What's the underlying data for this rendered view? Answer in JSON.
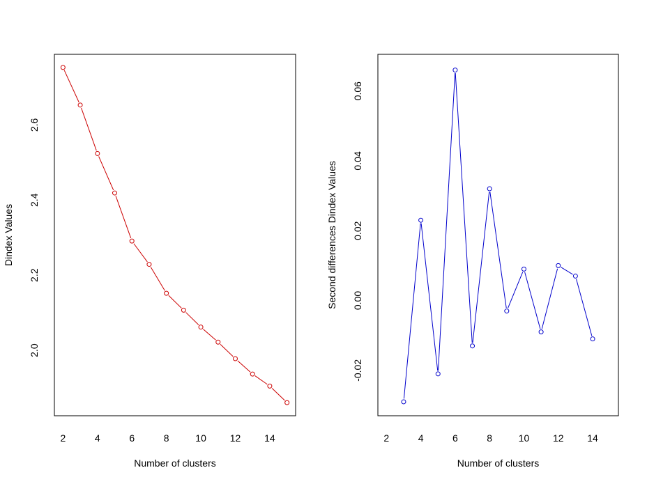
{
  "chart_data": [
    {
      "type": "line",
      "title": "",
      "xlabel": "Number of clusters",
      "ylabel": "Dindex Values",
      "color": "#cc0000",
      "x": [
        2,
        3,
        4,
        5,
        6,
        7,
        8,
        9,
        10,
        11,
        12,
        13,
        14,
        15
      ],
      "values": [
        2.753,
        2.653,
        2.524,
        2.419,
        2.291,
        2.229,
        2.152,
        2.107,
        2.062,
        2.022,
        1.978,
        1.937,
        1.905,
        1.861
      ],
      "xlim": [
        1.5,
        15.5
      ],
      "ylim": [
        1.826,
        2.788
      ],
      "xticks": [
        2,
        4,
        6,
        8,
        10,
        12,
        14
      ],
      "xtick_labels": [
        "2",
        "4",
        "6",
        "8",
        "10",
        "12",
        "14"
      ],
      "yticks": [
        2.0,
        2.2,
        2.4,
        2.6
      ],
      "ytick_labels": [
        "2.0",
        "2.2",
        "2.4",
        "2.6"
      ]
    },
    {
      "type": "line",
      "title": "",
      "xlabel": "Number of clusters",
      "ylabel": "Second differences Dindex Values",
      "color": "#0000cc",
      "x": [
        3,
        4,
        5,
        6,
        7,
        8,
        9,
        10,
        11,
        12,
        13,
        14
      ],
      "values": [
        -0.029,
        0.023,
        -0.021,
        0.066,
        -0.013,
        0.032,
        -0.003,
        0.009,
        -0.009,
        0.01,
        0.007,
        -0.011
      ],
      "xlim": [
        1.5,
        15.5
      ],
      "ylim": [
        -0.033,
        0.0705
      ],
      "xticks": [
        2,
        4,
        6,
        8,
        10,
        12,
        14
      ],
      "xtick_labels": [
        "2",
        "4",
        "6",
        "8",
        "10",
        "12",
        "14"
      ],
      "yticks": [
        -0.02,
        0.0,
        0.02,
        0.04,
        0.06
      ],
      "ytick_labels": [
        "-0.02",
        "0.00",
        "0.02",
        "0.04",
        "0.06"
      ]
    }
  ]
}
